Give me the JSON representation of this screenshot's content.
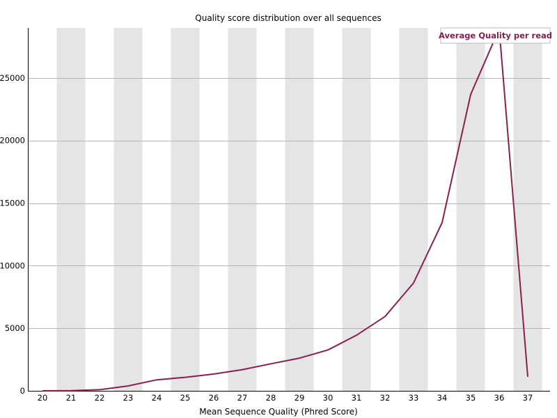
{
  "chart_data": {
    "type": "line",
    "title": "Quality score distribution over all sequences",
    "xlabel": "Mean Sequence Quality (Phred Score)",
    "ylabel": "",
    "categories": [
      "20",
      "21",
      "22",
      "23",
      "24",
      "25",
      "26",
      "27",
      "28",
      "29",
      "30",
      "31",
      "32",
      "33",
      "34",
      "35",
      "36",
      "37"
    ],
    "series": [
      {
        "name": "Average Quality per read",
        "values": [
          8,
          15,
          90,
          390,
          880,
          1080,
          1340,
          1690,
          2160,
          2610,
          3270,
          4440,
          5940,
          8620,
          13450,
          23680,
          28930,
          1120
        ]
      }
    ],
    "ylim": [
      0,
      29000
    ],
    "yticks": [
      0,
      5000,
      10000,
      15000,
      20000,
      25000
    ],
    "grid": true,
    "legend": "top-right",
    "colors": {
      "line": "#8b1e50",
      "band": "#e5e5e5",
      "grid": "#b4b4b4",
      "axis": "#000000"
    }
  }
}
